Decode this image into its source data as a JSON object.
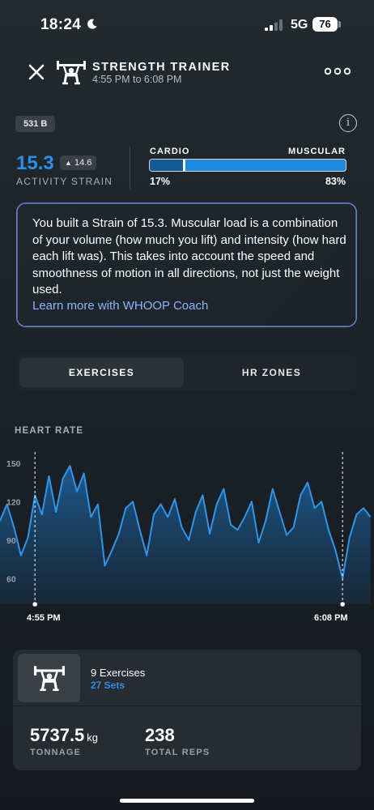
{
  "status_bar": {
    "time": "18:24",
    "network": "5G",
    "battery": "76"
  },
  "header": {
    "title": "STRENGTH TRAINER",
    "subtitle": "4:55 PM to 6:08 PM"
  },
  "badge": "531 B",
  "strain": {
    "value": "15.3",
    "delta": "14.6",
    "label": "ACTIVITY STRAIN"
  },
  "load_split": {
    "cardio_label": "CARDIO",
    "muscular_label": "MUSCULAR",
    "cardio_pct_text": "17%",
    "muscular_pct_text": "83%",
    "cardio_fraction": 0.17
  },
  "coach": {
    "text": "You built a Strain of 15.3. Muscular load is a combination of your volume (how much you lift) and intensity (how hard each lift was). This takes into account the speed and smoothness of motion in all directions, not just the weight used.",
    "link": "Learn more with WHOOP Coach"
  },
  "tabs": [
    {
      "label": "EXERCISES",
      "active": true
    },
    {
      "label": "HR ZONES",
      "active": false
    }
  ],
  "colors": {
    "accent": "#2e8fe6",
    "link": "#8fb3ff",
    "bar_cardio": "#155a93",
    "bar_muscular": "#1f8be0",
    "hr_line": "#2f95e8"
  },
  "chart_data": {
    "type": "area",
    "title": "HEART RATE",
    "y_ticks": [
      "150",
      "120",
      "90",
      "60"
    ],
    "y_tick_values": [
      150,
      120,
      90,
      60
    ],
    "ylim": [
      40,
      160
    ],
    "xlim": [
      -10,
      97
    ],
    "start_label": "4:55 PM",
    "end_label": "6:08 PM",
    "grid": false,
    "x": [
      -10,
      -8,
      -6,
      -4,
      -2,
      0,
      2,
      4,
      6,
      8,
      10,
      12,
      14,
      16,
      18,
      20,
      22,
      24,
      26,
      28,
      30,
      32,
      34,
      36,
      38,
      40,
      42,
      44,
      46,
      48,
      50,
      52,
      54,
      56,
      58,
      60,
      62,
      64,
      66,
      68,
      70,
      72,
      74,
      76,
      78,
      80,
      82,
      84,
      86,
      88,
      90,
      92,
      94,
      96
    ],
    "y": [
      105,
      118,
      100,
      78,
      92,
      125,
      110,
      140,
      112,
      138,
      148,
      128,
      142,
      108,
      118,
      70,
      82,
      95,
      115,
      120,
      98,
      78,
      110,
      118,
      108,
      122,
      100,
      90,
      112,
      125,
      95,
      118,
      130,
      102,
      98,
      108,
      120,
      88,
      105,
      130,
      112,
      94,
      100,
      125,
      135,
      115,
      120,
      98,
      82,
      60,
      92,
      110,
      115,
      108
    ]
  },
  "summary": {
    "exercises": "9 Exercises",
    "sets": "27 Sets",
    "tonnage_value": "5737.5",
    "tonnage_unit": "kg",
    "tonnage_label": "TONNAGE",
    "reps_value": "238",
    "reps_label": "TOTAL REPS"
  },
  "icons": [
    "moon-icon",
    "signal-icon",
    "close-icon",
    "weightlifter-icon",
    "more-icon",
    "info-icon",
    "arrow-up-icon"
  ]
}
